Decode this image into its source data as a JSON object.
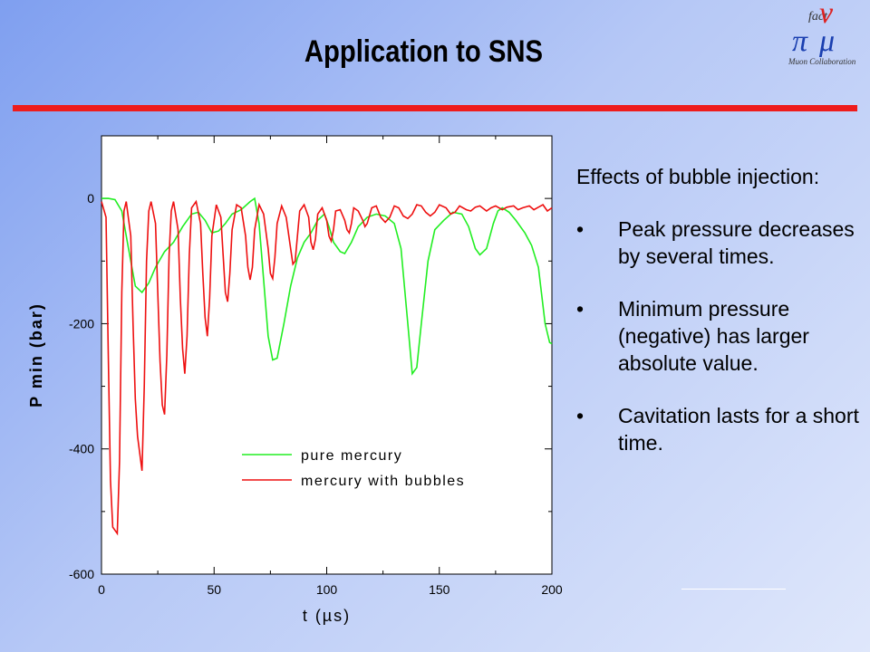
{
  "slide": {
    "title": "Application to SNS",
    "logo": {
      "lines": [
        "fact",
        "π",
        "ν",
        "μ"
      ],
      "caption": "Muon Collaboration"
    }
  },
  "notes": {
    "heading": "Effects of bubble injection:",
    "bullets": [
      "Peak pressure decreases by several times.",
      "Minimum pressure (negative) has larger absolute value.",
      "Cavitation lasts for a short time."
    ]
  },
  "colors": {
    "title_rule": "#ee1c1c",
    "series_pure": "#22ee22",
    "series_bubbles": "#ee1010"
  },
  "chart_data": {
    "type": "line",
    "xlabel": "t (µs)",
    "ylabel": "P min (bar)",
    "xlim": [
      0,
      200
    ],
    "ylim": [
      -600,
      100
    ],
    "xticks": [
      0,
      50,
      100,
      150,
      200
    ],
    "yticks": [
      0,
      -200,
      -400,
      -600
    ],
    "grid": false,
    "legend_position": "lower-right",
    "series": [
      {
        "name": "pure mercury",
        "color": "#22ee22",
        "points": [
          [
            0,
            0
          ],
          [
            3,
            0
          ],
          [
            6,
            -2
          ],
          [
            9,
            -20
          ],
          [
            12,
            -80
          ],
          [
            15,
            -140
          ],
          [
            18,
            -150
          ],
          [
            21,
            -135
          ],
          [
            24,
            -110
          ],
          [
            28,
            -85
          ],
          [
            32,
            -70
          ],
          [
            36,
            -45
          ],
          [
            40,
            -25
          ],
          [
            43,
            -22
          ],
          [
            46,
            -35
          ],
          [
            49,
            -55
          ],
          [
            52,
            -52
          ],
          [
            55,
            -40
          ],
          [
            58,
            -25
          ],
          [
            62,
            -18
          ],
          [
            66,
            -5
          ],
          [
            68,
            0
          ],
          [
            70,
            -40
          ],
          [
            72,
            -130
          ],
          [
            74,
            -220
          ],
          [
            76,
            -258
          ],
          [
            78,
            -255
          ],
          [
            81,
            -200
          ],
          [
            84,
            -140
          ],
          [
            87,
            -95
          ],
          [
            90,
            -70
          ],
          [
            93,
            -55
          ],
          [
            96,
            -35
          ],
          [
            99,
            -25
          ],
          [
            101,
            -45
          ],
          [
            103,
            -70
          ],
          [
            106,
            -85
          ],
          [
            108,
            -88
          ],
          [
            111,
            -70
          ],
          [
            114,
            -45
          ],
          [
            118,
            -30
          ],
          [
            122,
            -25
          ],
          [
            126,
            -28
          ],
          [
            130,
            -40
          ],
          [
            133,
            -80
          ],
          [
            136,
            -200
          ],
          [
            138,
            -280
          ],
          [
            140,
            -270
          ],
          [
            142,
            -200
          ],
          [
            145,
            -100
          ],
          [
            148,
            -50
          ],
          [
            152,
            -35
          ],
          [
            156,
            -22
          ],
          [
            160,
            -25
          ],
          [
            163,
            -45
          ],
          [
            166,
            -80
          ],
          [
            168,
            -90
          ],
          [
            171,
            -80
          ],
          [
            174,
            -40
          ],
          [
            176,
            -20
          ],
          [
            178,
            -15
          ],
          [
            181,
            -22
          ],
          [
            184,
            -35
          ],
          [
            188,
            -55
          ],
          [
            191,
            -75
          ],
          [
            194,
            -110
          ],
          [
            197,
            -200
          ],
          [
            199,
            -230
          ],
          [
            200,
            -232
          ]
        ]
      },
      {
        "name": "mercury with bubbles",
        "color": "#ee1010",
        "points": [
          [
            0,
            -5
          ],
          [
            2,
            -30
          ],
          [
            3,
            -250
          ],
          [
            4,
            -450
          ],
          [
            5,
            -525
          ],
          [
            7,
            -535
          ],
          [
            8,
            -420
          ],
          [
            9,
            -150
          ],
          [
            10,
            -20
          ],
          [
            11,
            -5
          ],
          [
            13,
            -60
          ],
          [
            14,
            -200
          ],
          [
            15,
            -320
          ],
          [
            16,
            -380
          ],
          [
            18,
            -435
          ],
          [
            19,
            -300
          ],
          [
            20,
            -100
          ],
          [
            21,
            -20
          ],
          [
            22,
            -5
          ],
          [
            24,
            -40
          ],
          [
            25,
            -150
          ],
          [
            26,
            -260
          ],
          [
            27,
            -330
          ],
          [
            28,
            -345
          ],
          [
            29,
            -250
          ],
          [
            30,
            -90
          ],
          [
            31,
            -20
          ],
          [
            32,
            -5
          ],
          [
            34,
            -50
          ],
          [
            35,
            -160
          ],
          [
            36,
            -240
          ],
          [
            37,
            -280
          ],
          [
            38,
            -220
          ],
          [
            39,
            -90
          ],
          [
            40,
            -15
          ],
          [
            42,
            -5
          ],
          [
            44,
            -40
          ],
          [
            45,
            -120
          ],
          [
            46,
            -190
          ],
          [
            47,
            -220
          ],
          [
            48,
            -160
          ],
          [
            49,
            -60
          ],
          [
            51,
            -10
          ],
          [
            53,
            -30
          ],
          [
            54,
            -90
          ],
          [
            55,
            -150
          ],
          [
            56,
            -165
          ],
          [
            57,
            -120
          ],
          [
            58,
            -50
          ],
          [
            60,
            -10
          ],
          [
            62,
            -15
          ],
          [
            64,
            -60
          ],
          [
            65,
            -110
          ],
          [
            66,
            -130
          ],
          [
            67,
            -110
          ],
          [
            68,
            -50
          ],
          [
            70,
            -10
          ],
          [
            72,
            -25
          ],
          [
            74,
            -80
          ],
          [
            75,
            -120
          ],
          [
            76,
            -128
          ],
          [
            77,
            -95
          ],
          [
            78,
            -40
          ],
          [
            80,
            -12
          ],
          [
            82,
            -30
          ],
          [
            84,
            -80
          ],
          [
            85,
            -105
          ],
          [
            86,
            -100
          ],
          [
            87,
            -60
          ],
          [
            88,
            -20
          ],
          [
            90,
            -10
          ],
          [
            92,
            -30
          ],
          [
            93,
            -70
          ],
          [
            94,
            -82
          ],
          [
            95,
            -65
          ],
          [
            96,
            -25
          ],
          [
            98,
            -15
          ],
          [
            100,
            -35
          ],
          [
            101,
            -60
          ],
          [
            102,
            -68
          ],
          [
            103,
            -50
          ],
          [
            104,
            -20
          ],
          [
            106,
            -18
          ],
          [
            108,
            -35
          ],
          [
            109,
            -50
          ],
          [
            110,
            -55
          ],
          [
            111,
            -40
          ],
          [
            112,
            -15
          ],
          [
            114,
            -20
          ],
          [
            116,
            -35
          ],
          [
            117,
            -45
          ],
          [
            118,
            -40
          ],
          [
            120,
            -15
          ],
          [
            122,
            -12
          ],
          [
            124,
            -30
          ],
          [
            126,
            -38
          ],
          [
            128,
            -30
          ],
          [
            130,
            -12
          ],
          [
            132,
            -15
          ],
          [
            134,
            -28
          ],
          [
            136,
            -32
          ],
          [
            138,
            -25
          ],
          [
            140,
            -10
          ],
          [
            142,
            -12
          ],
          [
            144,
            -22
          ],
          [
            146,
            -28
          ],
          [
            148,
            -22
          ],
          [
            150,
            -10
          ],
          [
            153,
            -15
          ],
          [
            155,
            -25
          ],
          [
            157,
            -22
          ],
          [
            159,
            -12
          ],
          [
            162,
            -18
          ],
          [
            164,
            -20
          ],
          [
            166,
            -14
          ],
          [
            168,
            -12
          ],
          [
            171,
            -20
          ],
          [
            173,
            -15
          ],
          [
            175,
            -12
          ],
          [
            178,
            -18
          ],
          [
            180,
            -14
          ],
          [
            183,
            -12
          ],
          [
            185,
            -18
          ],
          [
            187,
            -15
          ],
          [
            190,
            -12
          ],
          [
            192,
            -18
          ],
          [
            194,
            -14
          ],
          [
            196,
            -10
          ],
          [
            198,
            -20
          ],
          [
            200,
            -15
          ]
        ]
      }
    ]
  }
}
